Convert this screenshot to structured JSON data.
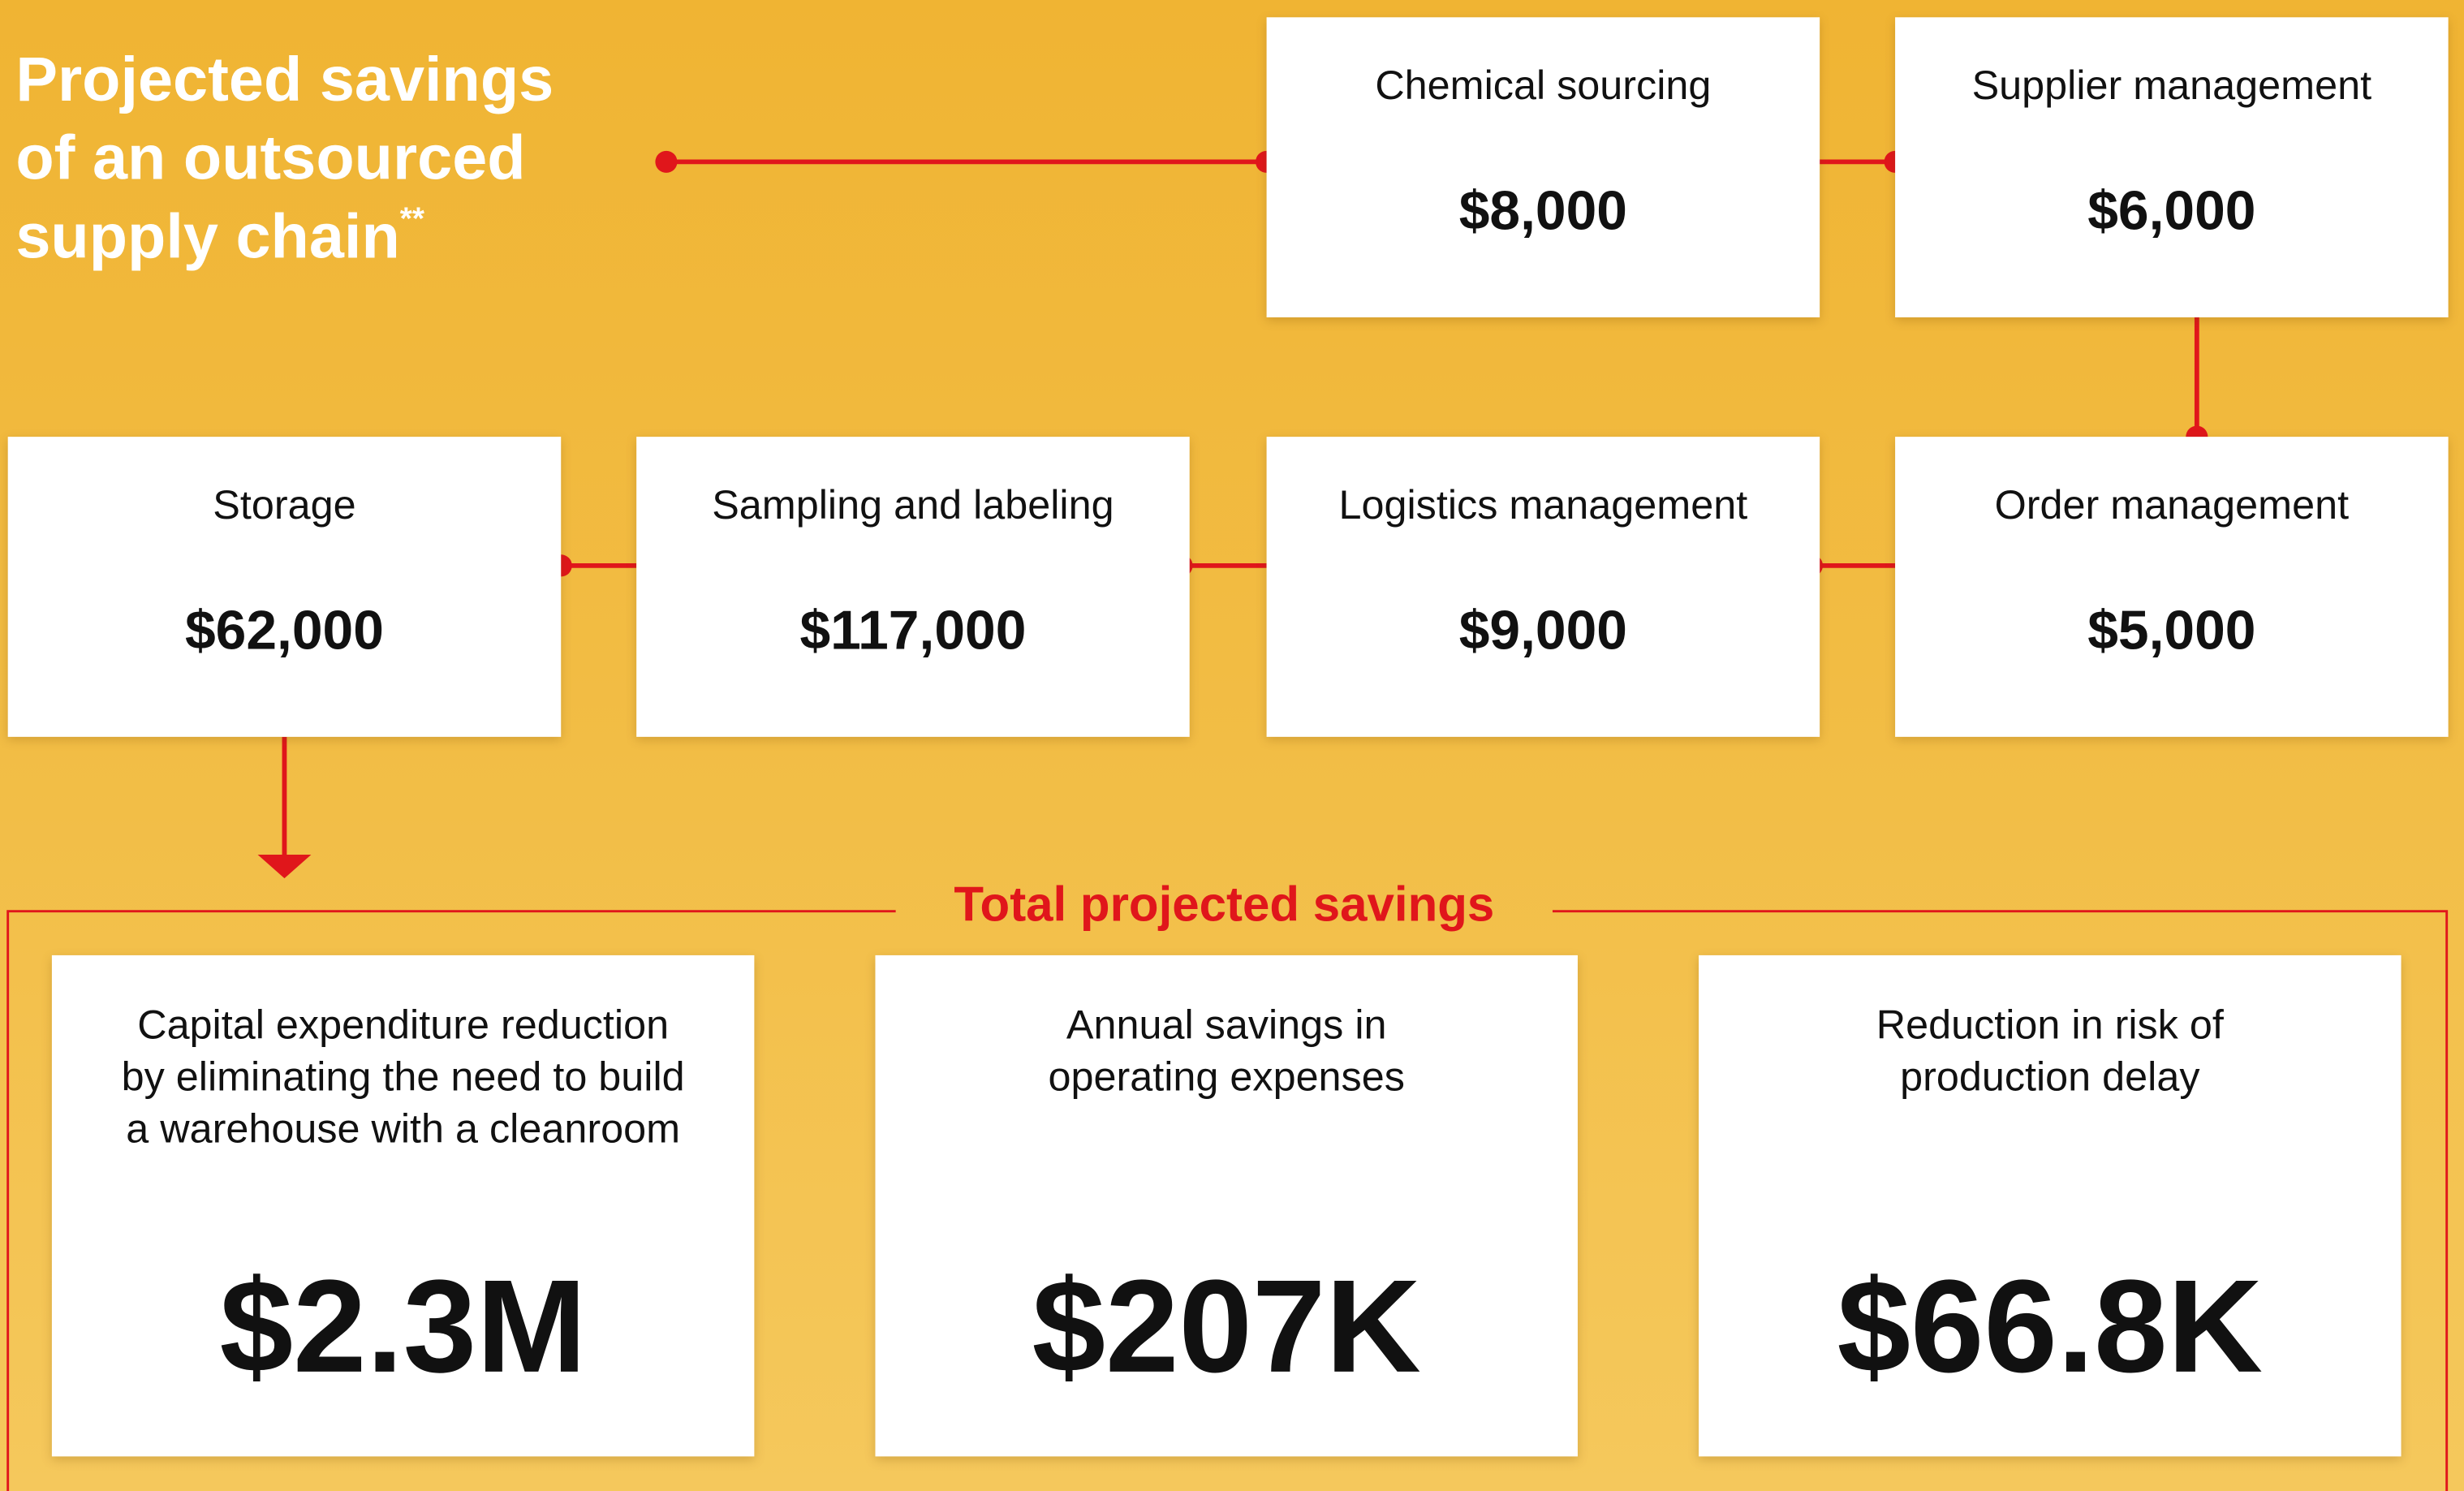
{
  "header": {
    "title_lines": [
      "Projected savings",
      "of an outsourced",
      "supply chain"
    ],
    "title_note": "**"
  },
  "steps": [
    {
      "label": "Chemical sourcing",
      "value": "$8,000"
    },
    {
      "label": "Supplier management",
      "value": "$6,000"
    },
    {
      "label": "Order management",
      "value": "$5,000"
    },
    {
      "label": "Logistics management",
      "value": "$9,000"
    },
    {
      "label": "Sampling and labeling",
      "value": "$117,000"
    },
    {
      "label": "Storage",
      "value": "$62,000"
    }
  ],
  "totals": {
    "title": "Total projected savings",
    "items": [
      {
        "label": "Capital expenditure reduction by eliminating the need to build a warehouse with a cleanroom",
        "value": "$2.3M"
      },
      {
        "label": "Annual savings in operating expenses",
        "value": "$207K"
      },
      {
        "label": "Reduction in risk of production delay",
        "value": "$66.8K"
      }
    ]
  }
}
